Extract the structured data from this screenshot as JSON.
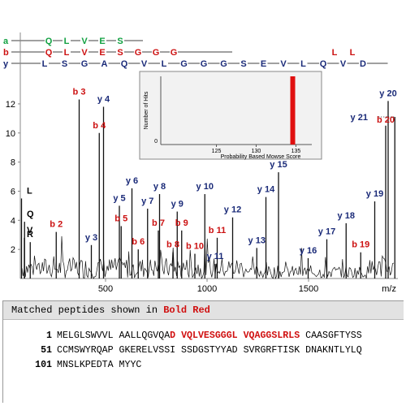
{
  "chart_data": {
    "type": "spectrum",
    "xlabel": "m/z",
    "x_ticks": [
      "500",
      "1000",
      "1500"
    ],
    "y_ticks": [
      "2",
      "4",
      "6",
      "8",
      "10",
      "12"
    ],
    "xlim": [
      80,
      1940
    ],
    "ylim": [
      0,
      13
    ],
    "peaks": [
      {
        "label": "V",
        "type": "imm",
        "mz": 100,
        "intensity": 2.8
      },
      {
        "label": "R",
        "type": "imm",
        "mz": 129,
        "intensity": 2.5
      },
      {
        "label": "Q",
        "type": "imm",
        "mz": 101,
        "intensity": 3.9
      },
      {
        "label": "L",
        "type": "imm",
        "mz": 86,
        "intensity": 5.5
      },
      {
        "label": "b 2",
        "type": "b",
        "mz": 257,
        "intensity": 3.2
      },
      {
        "label": "b 3",
        "type": "b",
        "mz": 370,
        "intensity": 12.3
      },
      {
        "label": "y 3",
        "type": "y",
        "mz": 430,
        "intensity": 2.3
      },
      {
        "label": "b 4",
        "type": "b",
        "mz": 469,
        "intensity": 10.0
      },
      {
        "label": "y 4",
        "type": "y",
        "mz": 490,
        "intensity": 11.8
      },
      {
        "label": "y 5",
        "type": "y",
        "mz": 568,
        "intensity": 5.0
      },
      {
        "label": "b 5",
        "type": "b",
        "mz": 577,
        "intensity": 3.6
      },
      {
        "label": "y 6",
        "type": "y",
        "mz": 630,
        "intensity": 6.2
      },
      {
        "label": "b 6",
        "type": "b",
        "mz": 661,
        "intensity": 2.0
      },
      {
        "label": "y 7",
        "type": "y",
        "mz": 707,
        "intensity": 4.8
      },
      {
        "label": "b 7",
        "type": "b",
        "mz": 760,
        "intensity": 3.3
      },
      {
        "label": "y 8",
        "type": "y",
        "mz": 766,
        "intensity": 5.8
      },
      {
        "label": "b 8",
        "type": "b",
        "mz": 832,
        "intensity": 1.8
      },
      {
        "label": "y 9",
        "type": "y",
        "mz": 853,
        "intensity": 4.6
      },
      {
        "label": "b 9",
        "type": "b",
        "mz": 875,
        "intensity": 3.3
      },
      {
        "label": "b 10",
        "type": "b",
        "mz": 940,
        "intensity": 1.7
      },
      {
        "label": "y 10",
        "type": "y",
        "mz": 989,
        "intensity": 5.8
      },
      {
        "label": "y 11",
        "type": "y",
        "mz": 1040,
        "intensity": 1.0
      },
      {
        "label": "b 11",
        "type": "b",
        "mz": 1050,
        "intensity": 2.8
      },
      {
        "label": "y 12",
        "type": "y",
        "mz": 1126,
        "intensity": 4.2
      },
      {
        "label": "y 13",
        "type": "y",
        "mz": 1245,
        "intensity": 2.1
      },
      {
        "label": "y 14",
        "type": "y",
        "mz": 1290,
        "intensity": 5.6
      },
      {
        "label": "y 15",
        "type": "y",
        "mz": 1352,
        "intensity": 7.3
      },
      {
        "label": "y 16",
        "type": "y",
        "mz": 1498,
        "intensity": 1.4
      },
      {
        "label": "y 17",
        "type": "y",
        "mz": 1590,
        "intensity": 2.7
      },
      {
        "label": "y 18",
        "type": "y",
        "mz": 1685,
        "intensity": 3.8
      },
      {
        "label": "b 19",
        "type": "b",
        "mz": 1757,
        "intensity": 1.8
      },
      {
        "label": "y 19",
        "type": "y",
        "mz": 1826,
        "intensity": 5.3
      },
      {
        "label": "b 20",
        "type": "b",
        "mz": 1880,
        "intensity": 10.5
      },
      {
        "label": "y 20",
        "type": "y",
        "mz": 1892,
        "intensity": 12.2
      },
      {
        "label": "y 21",
        "type": "y",
        "mz": 1925,
        "intensity": 11.1
      }
    ],
    "ion_ladder": {
      "row_labels": [
        "a",
        "b",
        "y"
      ],
      "a": [
        "Q",
        "L",
        "V",
        "E",
        "S"
      ],
      "b": [
        "Q",
        "L",
        "V",
        "E",
        "S",
        "G",
        "G",
        "G",
        "L",
        "L"
      ],
      "y": [
        "L",
        "S",
        "G",
        "A",
        "Q",
        "V",
        "L",
        "G",
        "G",
        "G",
        "S",
        "E",
        "V",
        "L",
        "Q",
        "V",
        "D"
      ]
    },
    "inset": {
      "ylabel": "Number of Hits",
      "xlabel": "Probability Based Mowse Score",
      "x_ticks": [
        "125",
        "130",
        "135"
      ],
      "y_ticks": [
        "0"
      ],
      "xlim": [
        118,
        137
      ],
      "bar": {
        "score": 134.6,
        "hits": 1
      }
    }
  },
  "panel": {
    "header_prefix": "Matched peptides shown in ",
    "header_highlight": "Bold Red"
  },
  "sequence": [
    {
      "start": "1",
      "segments": [
        {
          "text": "MELGLSWVVL AALLQGVQA",
          "match": false
        },
        {
          "text": "D VQLVESGGGL VQAGGSLRLS",
          "match": true
        },
        {
          "text": " CAASGFTYSS",
          "match": false
        }
      ]
    },
    {
      "start": "51",
      "segments": [
        {
          "text": "CCMSWYRQAP GKERELVSSI SSDGSTYYAD SVRGRFTISK DNAKNTLYLQ",
          "match": false
        }
      ]
    },
    {
      "start": "101",
      "segments": [
        {
          "text": "MNSLKPEDTA MYYC",
          "match": false
        }
      ]
    }
  ]
}
